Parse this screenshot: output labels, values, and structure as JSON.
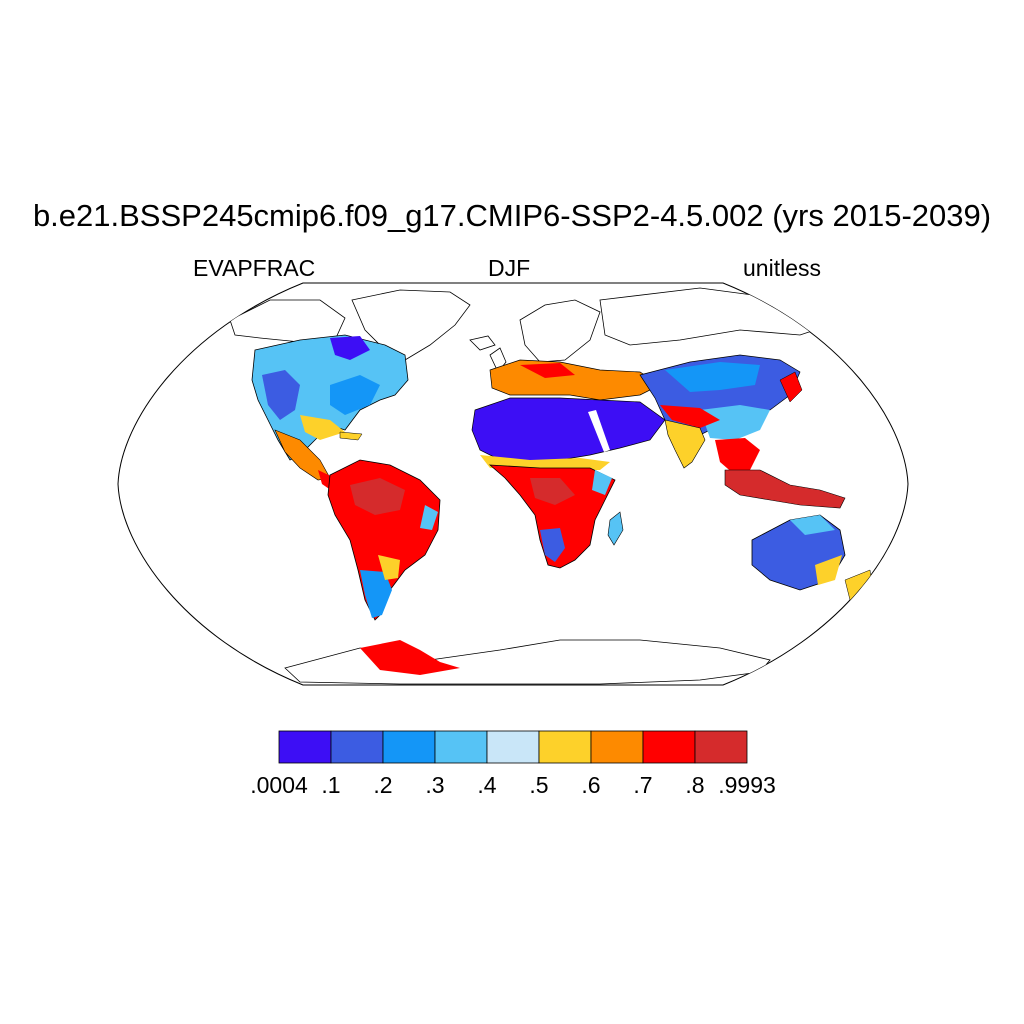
{
  "title": "b.e21.BSSP245cmip6.f09_g17.CMIP6-SSP2-4.5.002 (yrs 2015-2039)",
  "left_label": "EVAPFRAC",
  "center_label": "DJF",
  "right_label": "unitless",
  "colorbar": {
    "colors": [
      "#3d0ef5",
      "#3c5ce2",
      "#1496f7",
      "#56c3f5",
      "#c9e6f8",
      "#fdd12a",
      "#fd8a00",
      "#ff0000",
      "#d52b2c"
    ],
    "tick_labels": [
      ".0004",
      ".1",
      ".2",
      ".3",
      ".4",
      ".5",
      ".6",
      ".7",
      ".8",
      ".9993"
    ]
  },
  "colors": {
    "land_none": "#ffffff",
    "coast": "#000000"
  }
}
